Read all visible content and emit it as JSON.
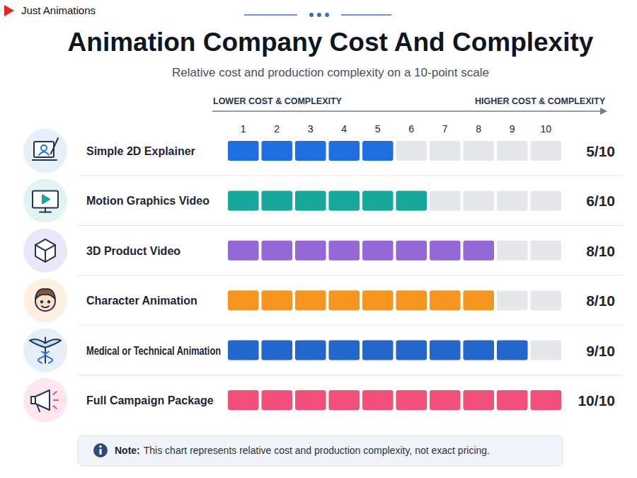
{
  "brand": "Just Animations",
  "chart_data": {
    "type": "bar",
    "orientation": "horizontal",
    "title": "Animation Company Cost And Complexity",
    "subtitle": "Relative cost and production complexity on a 10-point scale",
    "annotations": [
      "LOWER COST & COMPLEXITY",
      "HIGHER COST & COMPLEXITY"
    ],
    "categories": [
      "Simple 2D Explainer",
      "Motion Graphics Video",
      "3D Product Video",
      "Character Animation",
      "Medical or Technical Animation",
      "Full Campaign Package"
    ],
    "values": [
      5,
      6,
      8,
      8,
      9,
      10
    ],
    "value_labels": [
      "5/10",
      "6/10",
      "8/10",
      "8/10",
      "9/10",
      "10/10"
    ],
    "colors": [
      "#1f6fe0",
      "#16a89b",
      "#9468d6",
      "#f7961e",
      "#2366cc",
      "#f2507a"
    ],
    "xlim": [
      0,
      10
    ],
    "xticks": [
      1,
      2,
      3,
      4,
      5,
      6,
      7,
      8,
      9,
      10
    ],
    "data_labels": true,
    "note": {
      "label": "Note:",
      "text": "This chart represents relative cost and production complexity, not exact pricing."
    }
  }
}
